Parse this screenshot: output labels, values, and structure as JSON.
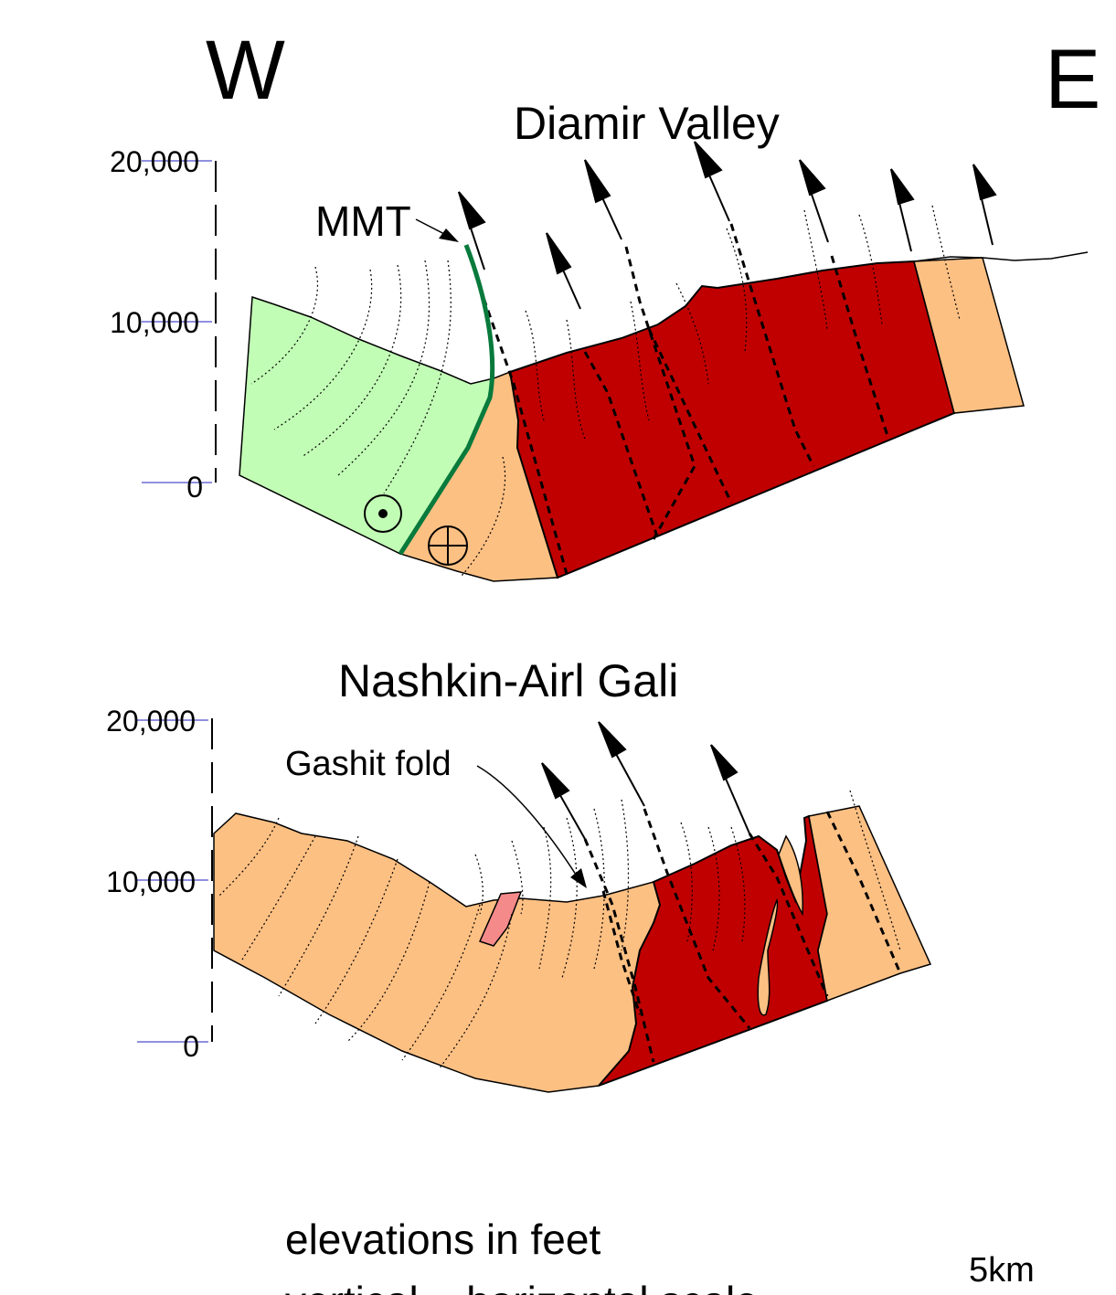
{
  "orientation": {
    "west": "W",
    "east": "E"
  },
  "section_top": {
    "title": "Diamir Valley",
    "fault_label": "MMT",
    "axis_ticks": [
      "20,000",
      "10,000",
      "0"
    ]
  },
  "section_bottom": {
    "title": "Nashkin-Airl Gali",
    "fold_label": "Gashit fold",
    "axis_ticks": [
      "20,000",
      "10,000",
      "0"
    ]
  },
  "footer": {
    "line1": "elevations in feet",
    "line2": "vertical = horizontal scale",
    "scale_label": "5km"
  },
  "colors": {
    "green_unit": "#c2fdb6",
    "orange_unit": "#fdc083",
    "red_unit": "#c00000",
    "pink_unit": "#f58a8a",
    "mmt_fault": "#087a3c"
  }
}
